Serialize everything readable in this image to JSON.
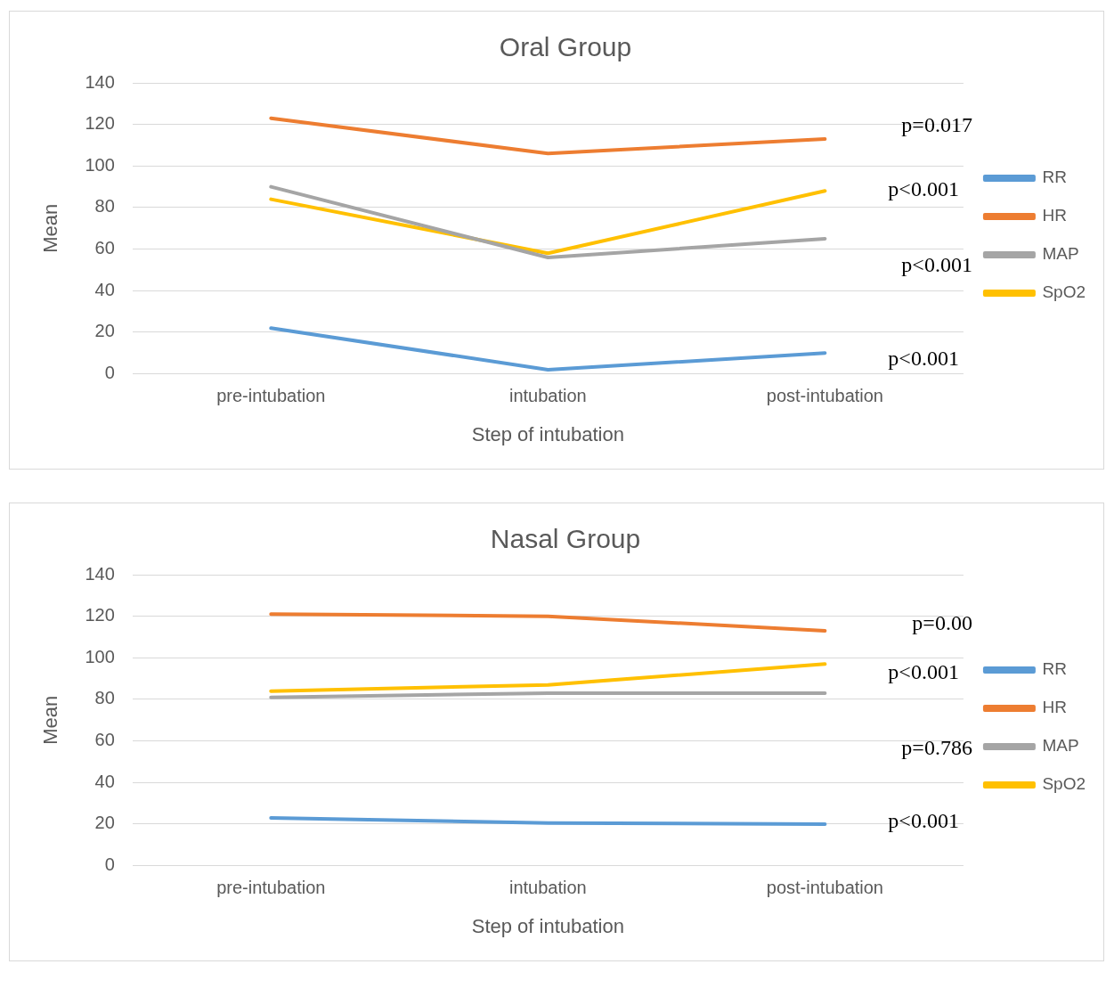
{
  "chart_data": [
    {
      "type": "line",
      "title": "Oral Group",
      "xlabel": "Step of intubation",
      "ylabel": "Mean",
      "categories": [
        "pre-intubation",
        "intubation",
        "post-intubation"
      ],
      "series": [
        {
          "name": "RR",
          "color": "#5b9bd5",
          "values": [
            22,
            2,
            10
          ]
        },
        {
          "name": "HR",
          "color": "#ed7d31",
          "values": [
            123,
            106,
            113
          ]
        },
        {
          "name": "MAP",
          "color": "#a5a5a5",
          "values": [
            90,
            56,
            65
          ]
        },
        {
          "name": "SpO2",
          "color": "#ffc000",
          "values": [
            84,
            58,
            88
          ]
        }
      ],
      "ylim": [
        0,
        140
      ],
      "yticks": [
        0,
        20,
        40,
        60,
        80,
        100,
        120,
        140
      ],
      "grid": "y",
      "legend": "right",
      "marker": "none",
      "line_style": "solid",
      "annotations": [
        "p=0.017",
        "p<0.001",
        "p<0.001",
        "p<0.001"
      ]
    },
    {
      "type": "line",
      "title": "Nasal Group",
      "xlabel": "Step of intubation",
      "ylabel": "Mean",
      "categories": [
        "pre-intubation",
        "intubation",
        "post-intubation"
      ],
      "series": [
        {
          "name": "RR",
          "color": "#5b9bd5",
          "values": [
            23,
            20.5,
            20
          ]
        },
        {
          "name": "HR",
          "color": "#ed7d31",
          "values": [
            121,
            120,
            113
          ]
        },
        {
          "name": "MAP",
          "color": "#a5a5a5",
          "values": [
            81,
            83,
            83
          ]
        },
        {
          "name": "SpO2",
          "color": "#ffc000",
          "values": [
            84,
            87,
            97
          ]
        }
      ],
      "ylim": [
        0,
        140
      ],
      "yticks": [
        0,
        20,
        40,
        60,
        80,
        100,
        120,
        140
      ],
      "grid": "y",
      "legend": "right",
      "marker": "none",
      "line_style": "solid",
      "annotations": [
        "p=0.00",
        "p<0.001",
        "p=0.786",
        "p<0.001"
      ]
    }
  ]
}
